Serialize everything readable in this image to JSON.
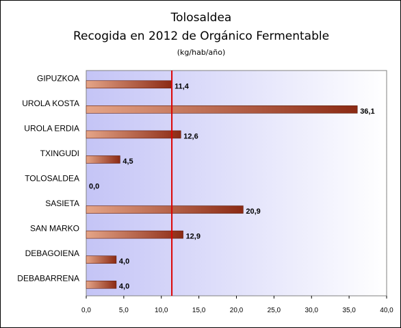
{
  "colors": {
    "plot_gradient_left": "#c4c4f6",
    "plot_gradient_right": "#ffffff",
    "bar_light": "#e5a588",
    "bar_dark": "#8b2a14",
    "bar_border": "#5a1a0a",
    "reference_line": "#dd0000"
  },
  "chart_data": {
    "type": "bar",
    "orientation": "horizontal",
    "title": "Tolosaldea",
    "subtitle": "Recogida en 2012 de Orgánico Fermentable",
    "unit_label": "(kg/hab/año)",
    "categories": [
      "GIPUZKOA",
      "UROLA KOSTA",
      "UROLA ERDIA",
      "TXINGUDI",
      "TOLOSALDEA",
      "SASIETA",
      "SAN MARKO",
      "DEBAGOIENA",
      "DEBABARRENA"
    ],
    "values": [
      11.4,
      36.1,
      12.6,
      4.5,
      0.0,
      20.9,
      12.9,
      4.0,
      4.0
    ],
    "value_labels": [
      "11,4",
      "36,1",
      "12,6",
      "4,5",
      "0,0",
      "20,9",
      "12,9",
      "4,0",
      "4,0"
    ],
    "xlim": [
      0,
      40
    ],
    "x_ticks": [
      0,
      5,
      10,
      15,
      20,
      25,
      30,
      35,
      40
    ],
    "x_tick_labels": [
      "0,0",
      "5,0",
      "10,0",
      "15,0",
      "20,0",
      "25,0",
      "30,0",
      "35,0",
      "40,0"
    ],
    "reference_line": 11.4,
    "grid": false,
    "legend": "none"
  }
}
